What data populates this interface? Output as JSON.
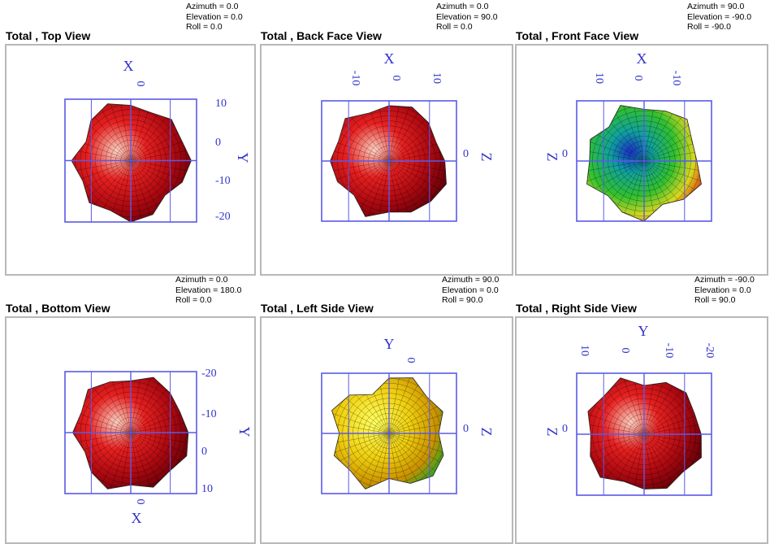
{
  "colors": {
    "axis": "#3333cc",
    "grid": "#5a5ae6",
    "frame": "#b8b8b8",
    "mesh": "#000000"
  },
  "views": [
    {
      "title": "Total , Top View",
      "azimuth": "Azimuth = 0.0",
      "elevation": "Elevation = 0.0",
      "roll": "Roll = 0.0",
      "axis_label_top": "X",
      "axis_label_side": "Y",
      "ticks_top": [
        "0"
      ],
      "ticks_side": [
        "10",
        "0",
        "-10",
        "-20"
      ]
    },
    {
      "title": "Total , Back Face View",
      "azimuth": "Azimuth = 0.0",
      "elevation": "Elevation = 90.0",
      "roll": "Roll = 0.0",
      "axis_label_top": "X",
      "axis_label_side": "Z",
      "ticks_top": [
        "-10",
        "0",
        "10"
      ],
      "ticks_side": [
        "0"
      ]
    },
    {
      "title": "Total , Front Face View",
      "azimuth": "Azimuth = 90.0",
      "elevation": "Elevation = -90.0",
      "roll": "Roll = -90.0",
      "axis_label_top": "X",
      "axis_label_side": "Z",
      "ticks_top": [
        "10",
        "0",
        "-10"
      ],
      "ticks_side": [
        "0"
      ]
    },
    {
      "title": "Total , Bottom View",
      "azimuth": "Azimuth = 0.0",
      "elevation": "Elevation = 180.0",
      "roll": "Roll = 0.0",
      "axis_label_top": "X",
      "axis_label_side": "Y",
      "ticks_top": [
        "0"
      ],
      "ticks_side": [
        "-20",
        "-10",
        "0",
        "10"
      ]
    },
    {
      "title": "Total , Left Side View",
      "azimuth": "Azimuth = 90.0",
      "elevation": "Elevation = 0.0",
      "roll": "Roll = 90.0",
      "axis_label_top": "Y",
      "axis_label_side": "Z",
      "ticks_top": [
        "0"
      ],
      "ticks_side": [
        "0"
      ]
    },
    {
      "title": "Total , Right Side View",
      "azimuth": "Azimuth = -90.0",
      "elevation": "Elevation = 0.0",
      "roll": "Roll = 90.0",
      "axis_label_top": "Y",
      "axis_label_side": "Z",
      "ticks_top": [
        "10",
        "0",
        "-10",
        "-20"
      ],
      "ticks_side": [
        "0"
      ]
    }
  ]
}
